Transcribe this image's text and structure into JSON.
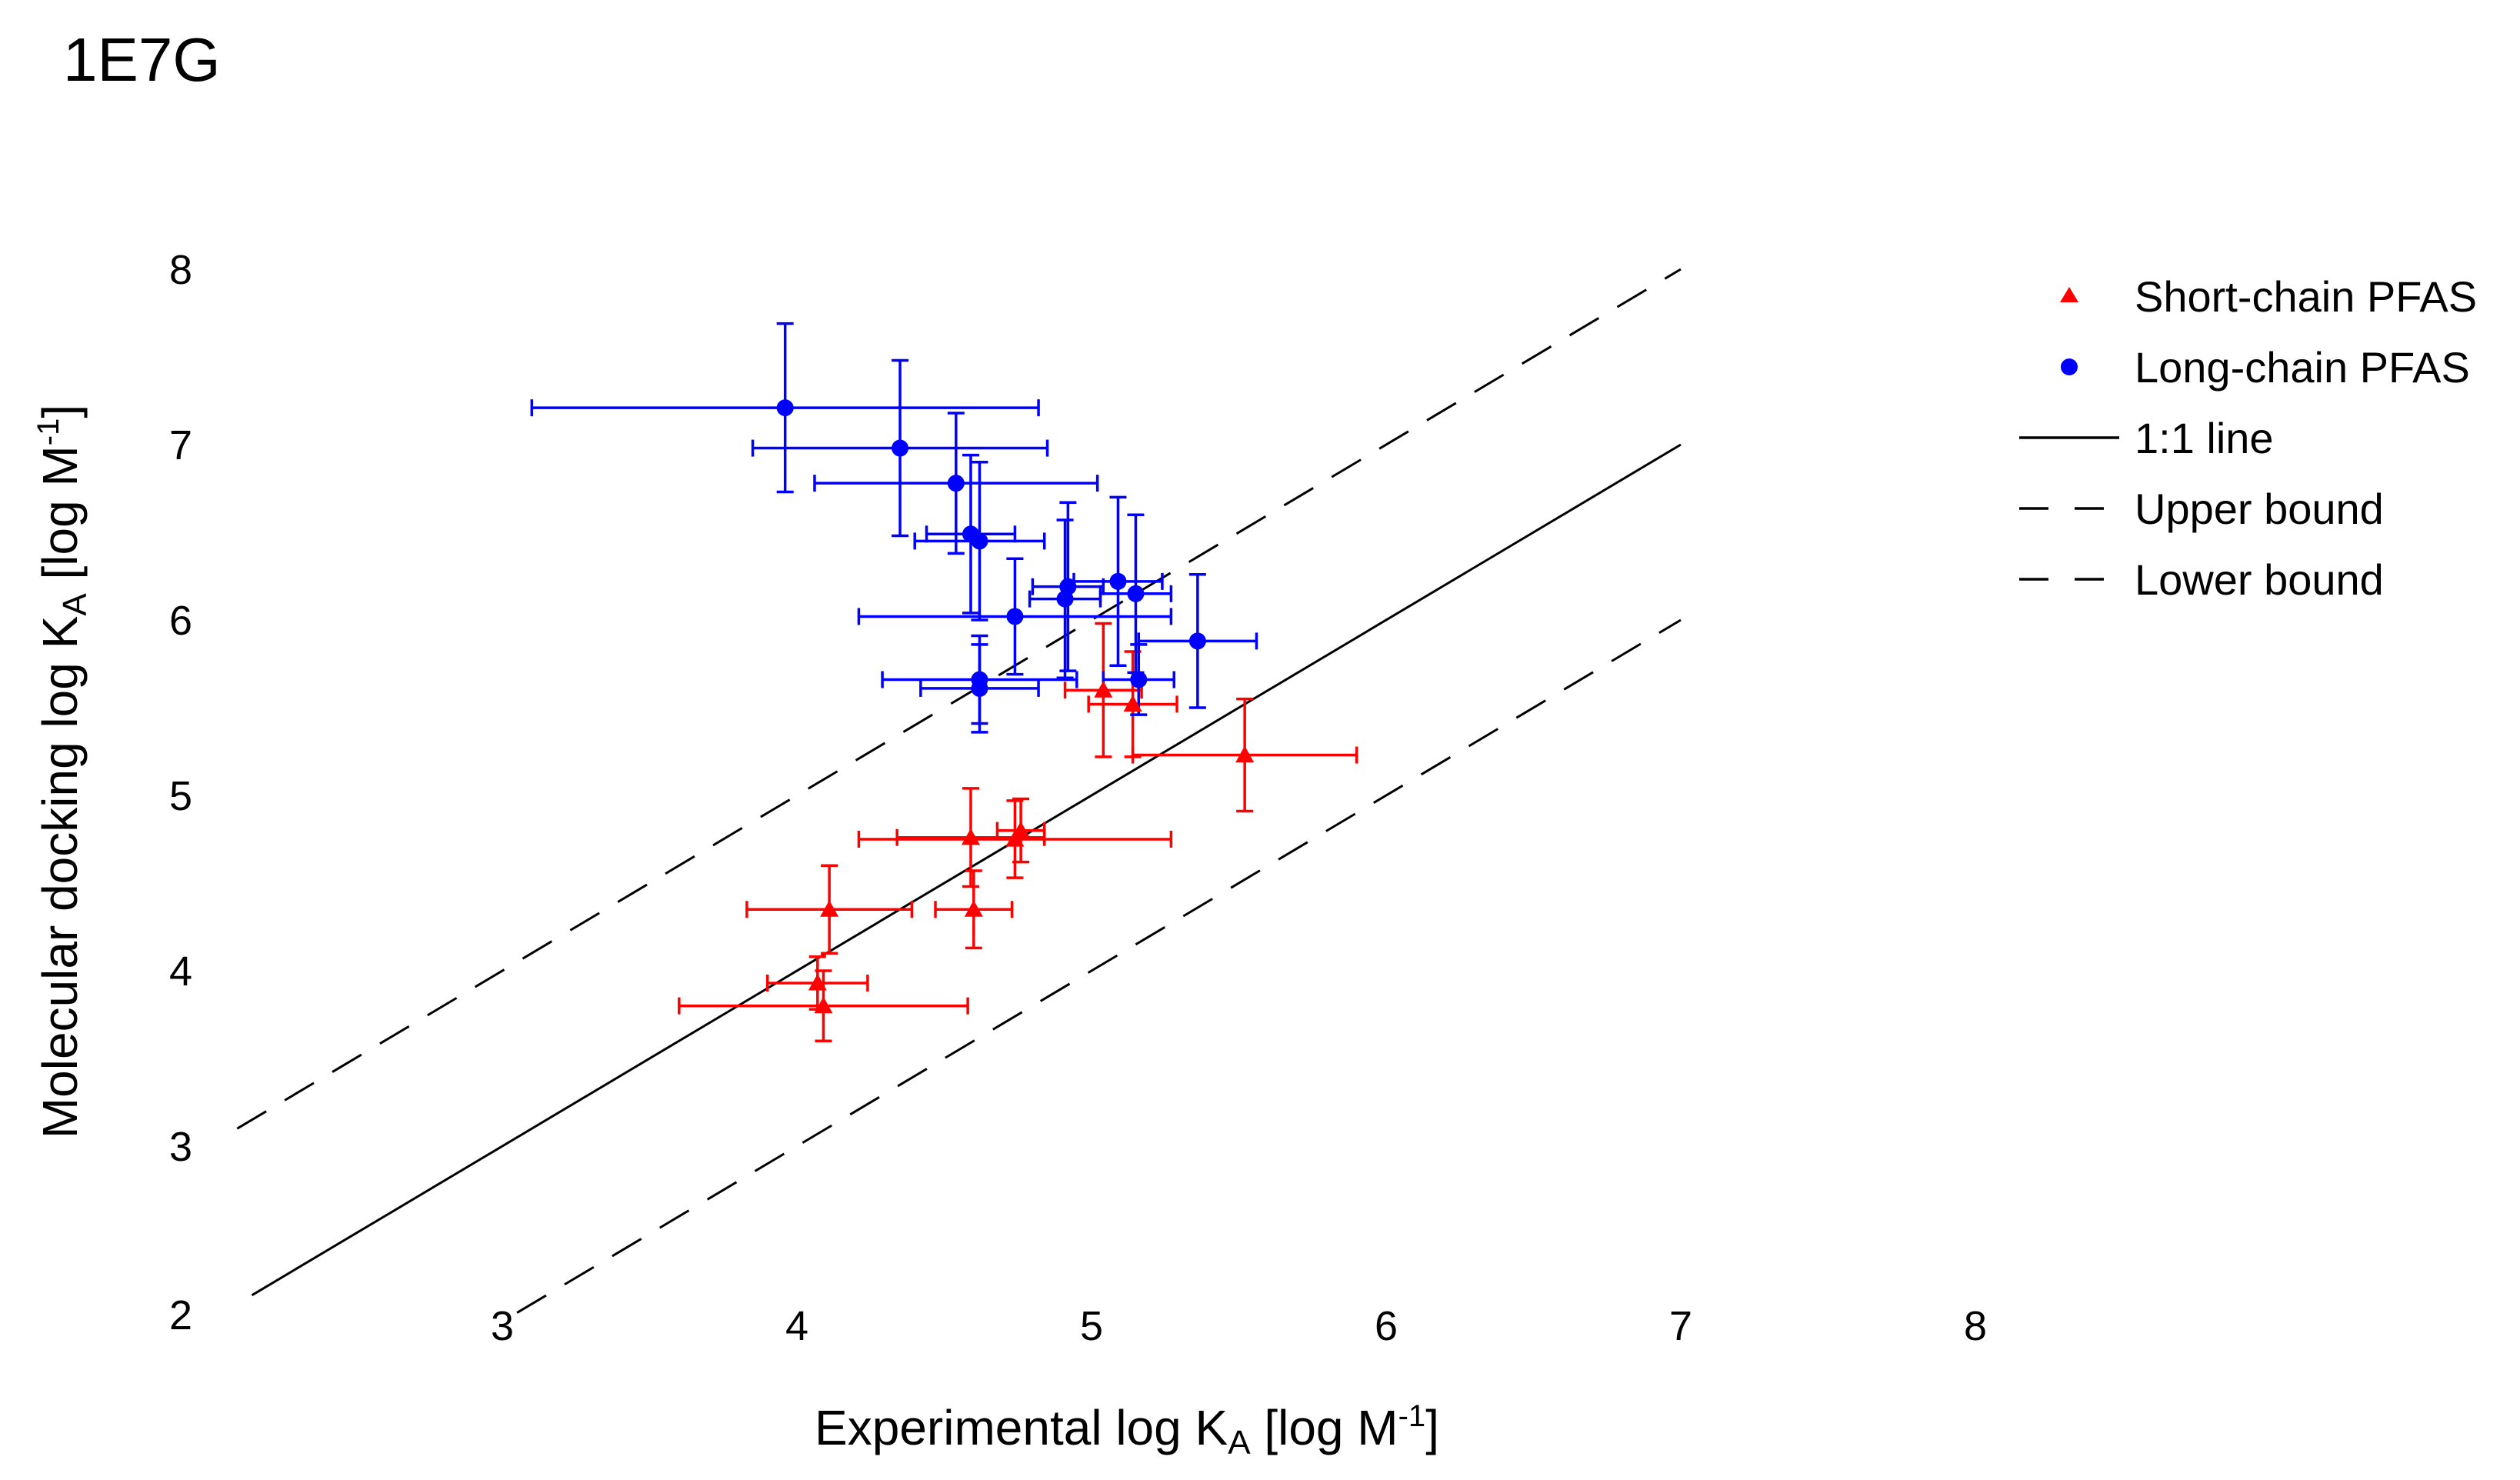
{
  "chart_data": {
    "type": "scatter",
    "title": "1E7G",
    "xlabel": "Experimental log K_A [log M^-1]",
    "ylabel": "Molecular docking log K_A [log M^-1]",
    "axis_label_parts": {
      "x": {
        "pre": "Experimental log K",
        "sub": "A",
        "mid": " [log M",
        "sup": "-1",
        "post": "]"
      },
      "y": {
        "pre": "Molecular docking log K",
        "sub": "A",
        "mid": " [log M",
        "sup": "-1",
        "post": "]"
      }
    },
    "xlim": [
      2,
      8
    ],
    "ylim": [
      2,
      8
    ],
    "xticks": [
      "3",
      "4",
      "5",
      "6",
      "7",
      "8"
    ],
    "yticks": [
      "2",
      "3",
      "4",
      "5",
      "6",
      "7",
      "8"
    ],
    "legend_position": "top-right",
    "reference_lines": [
      {
        "name": "1:1 line",
        "style": "solid",
        "x": [
          2.15,
          7.0
        ],
        "y": [
          2.15,
          7.0
        ]
      },
      {
        "name": "Upper bound",
        "style": "dashed",
        "x": [
          2.1,
          7.0
        ],
        "y": [
          3.1,
          8.0
        ]
      },
      {
        "name": "Lower bound",
        "style": "dashed",
        "x": [
          3.05,
          7.0
        ],
        "y": [
          2.05,
          6.0
        ]
      }
    ],
    "series": [
      {
        "name": "Short-chain PFAS",
        "marker": "triangle",
        "color": "#ff0000",
        "points": [
          {
            "x": 4.07,
            "y": 3.93,
            "xerr": 0.17,
            "yerr": 0.15
          },
          {
            "x": 4.09,
            "y": 3.8,
            "xerr": 0.49,
            "yerr": 0.2
          },
          {
            "x": 4.11,
            "y": 4.35,
            "xerr": 0.28,
            "yerr": 0.25
          },
          {
            "x": 4.6,
            "y": 4.35,
            "xerr": 0.13,
            "yerr": 0.22
          },
          {
            "x": 4.59,
            "y": 4.76,
            "xerr": 0.25,
            "yerr": 0.28
          },
          {
            "x": 4.74,
            "y": 4.75,
            "xerr": 0.53,
            "yerr": 0.22
          },
          {
            "x": 4.76,
            "y": 4.8,
            "xerr": 0.08,
            "yerr": 0.18
          },
          {
            "x": 5.04,
            "y": 5.6,
            "xerr": 0.13,
            "yerr": 0.38
          },
          {
            "x": 5.14,
            "y": 5.52,
            "xerr": 0.15,
            "yerr": 0.3
          },
          {
            "x": 5.52,
            "y": 5.23,
            "xerr": 0.38,
            "yerr": 0.32
          }
        ]
      },
      {
        "name": "Long-chain PFAS",
        "marker": "circle",
        "color": "#0000ff",
        "points": [
          {
            "x": 3.96,
            "y": 7.21,
            "xerr": 0.86,
            "yerr": 0.48
          },
          {
            "x": 4.35,
            "y": 6.98,
            "xerr": 0.5,
            "yerr": 0.5
          },
          {
            "x": 4.54,
            "y": 6.78,
            "xerr": 0.48,
            "yerr": 0.4
          },
          {
            "x": 4.59,
            "y": 6.49,
            "xerr": 0.15,
            "yerr": 0.45
          },
          {
            "x": 4.62,
            "y": 6.45,
            "xerr": 0.22,
            "yerr": 0.45
          },
          {
            "x": 4.74,
            "y": 6.02,
            "xerr": 0.53,
            "yerr": 0.33
          },
          {
            "x": 4.62,
            "y": 5.66,
            "xerr": 0.33,
            "yerr": 0.25
          },
          {
            "x": 4.62,
            "y": 5.61,
            "xerr": 0.2,
            "yerr": 0.25
          },
          {
            "x": 4.92,
            "y": 6.19,
            "xerr": 0.12,
            "yerr": 0.48
          },
          {
            "x": 4.91,
            "y": 6.12,
            "xerr": 0.12,
            "yerr": 0.45
          },
          {
            "x": 5.09,
            "y": 6.22,
            "xerr": 0.15,
            "yerr": 0.48
          },
          {
            "x": 5.15,
            "y": 6.15,
            "xerr": 0.12,
            "yerr": 0.45
          },
          {
            "x": 5.36,
            "y": 5.88,
            "xerr": 0.2,
            "yerr": 0.38
          },
          {
            "x": 5.16,
            "y": 5.66,
            "xerr": 0.12,
            "yerr": 0.2
          }
        ]
      }
    ],
    "legend": [
      {
        "label": "Short-chain PFAS",
        "kind": "triangle",
        "color": "#ff0000"
      },
      {
        "label": "Long-chain PFAS",
        "kind": "circle",
        "color": "#0000ff"
      },
      {
        "label": "1:1 line",
        "kind": "solid",
        "color": "#000000"
      },
      {
        "label": "Upper bound",
        "kind": "dashed",
        "color": "#000000"
      },
      {
        "label": "Lower bound",
        "kind": "dashed",
        "color": "#000000"
      }
    ]
  }
}
